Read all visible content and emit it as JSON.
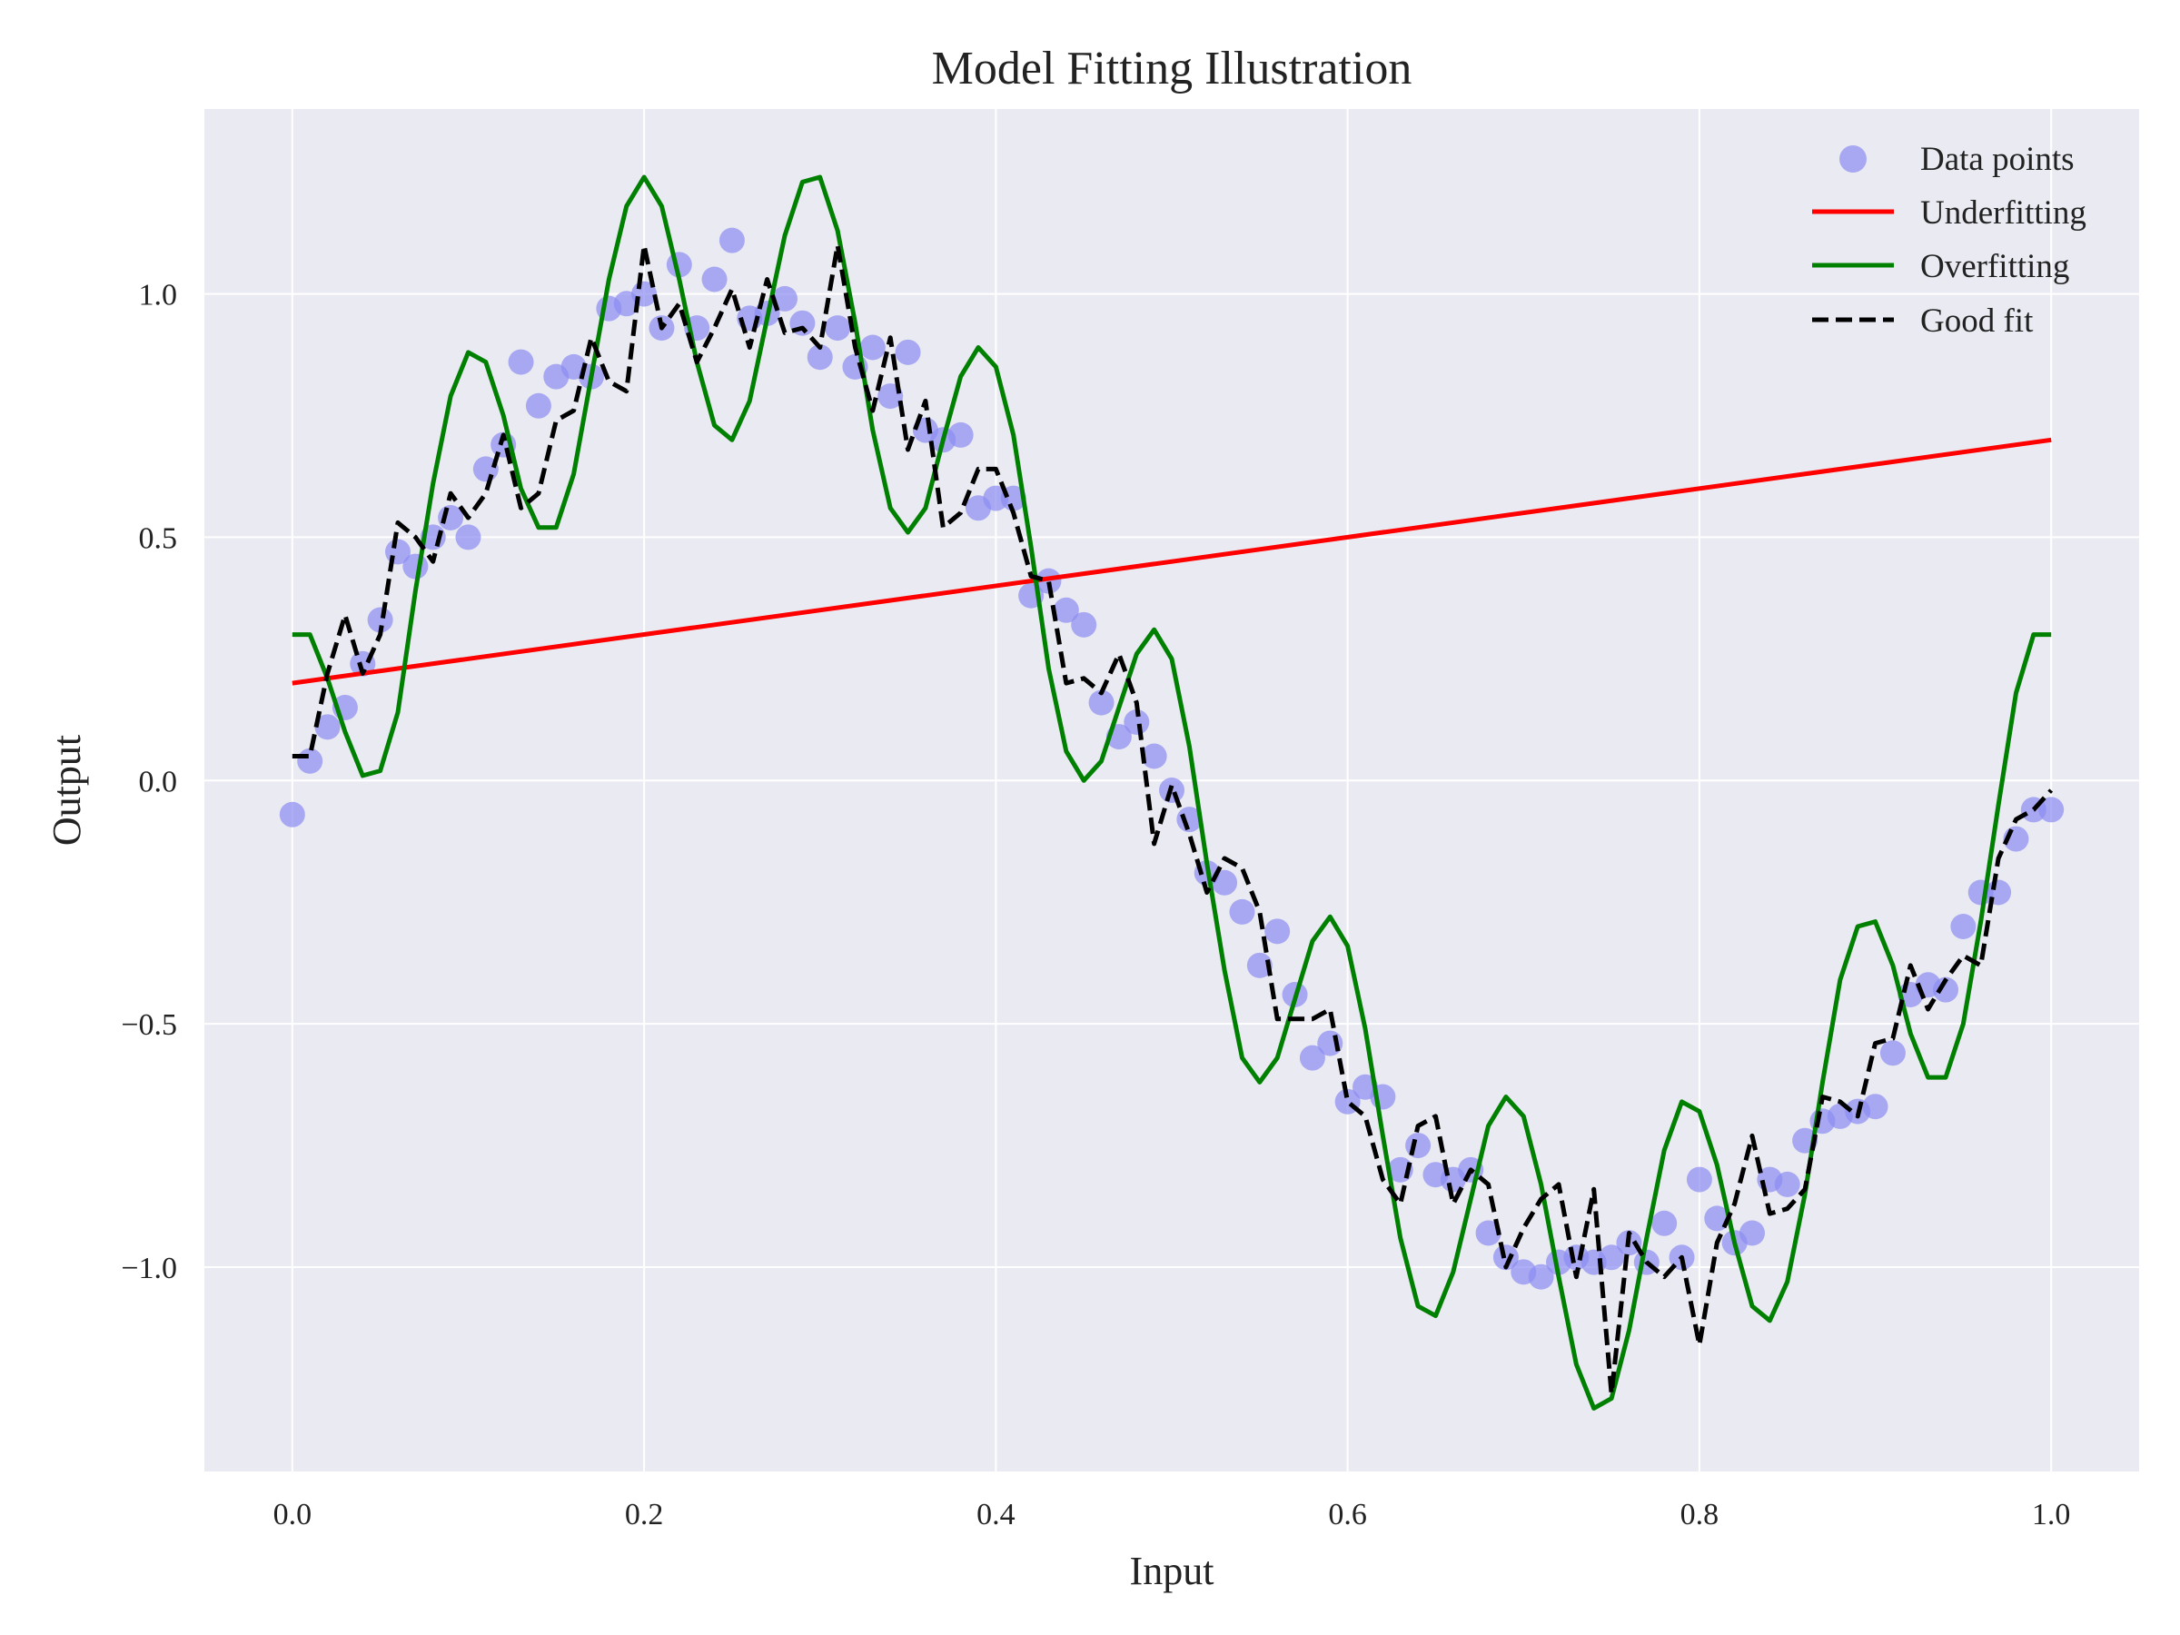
{
  "chart_data": {
    "type": "line",
    "title": "Model Fitting Illustration",
    "xlabel": "Input",
    "ylabel": "Output",
    "xlim": [
      -0.05,
      1.05
    ],
    "ylim": [
      -1.42,
      1.38
    ],
    "xticks": [
      0.0,
      0.2,
      0.4,
      0.6,
      0.8,
      1.0
    ],
    "xtick_labels": [
      "0.0",
      "0.2",
      "0.4",
      "0.6",
      "0.8",
      "1.0"
    ],
    "yticks": [
      1.0,
      0.5,
      0.0,
      -0.5,
      -1.0
    ],
    "ytick_labels": [
      "1.0",
      "0.5",
      "0.0",
      "−0.5",
      "−1.0"
    ],
    "grid": true,
    "legend_position": "top-right",
    "colors": {
      "background": "#eaeaf2",
      "grid": "#ffffff",
      "data_points": "#8c8cf2",
      "underfitting": "#ff0000",
      "overfitting": "#008000",
      "good_fit": "#000000"
    },
    "series": [
      {
        "name": "Data points",
        "kind": "scatter",
        "x": [
          0.0,
          0.01,
          0.02,
          0.03,
          0.04,
          0.05,
          0.06,
          0.07,
          0.08,
          0.09,
          0.1,
          0.11,
          0.12,
          0.13,
          0.14,
          0.15,
          0.16,
          0.17,
          0.18,
          0.19,
          0.2,
          0.21,
          0.22,
          0.23,
          0.24,
          0.25,
          0.26,
          0.27,
          0.28,
          0.29,
          0.3,
          0.31,
          0.32,
          0.33,
          0.34,
          0.35,
          0.36,
          0.37,
          0.38,
          0.39,
          0.4,
          0.41,
          0.42,
          0.43,
          0.44,
          0.45,
          0.46,
          0.47,
          0.48,
          0.49,
          0.5,
          0.51,
          0.52,
          0.53,
          0.54,
          0.55,
          0.56,
          0.57,
          0.58,
          0.59,
          0.6,
          0.61,
          0.62,
          0.63,
          0.64,
          0.65,
          0.66,
          0.67,
          0.68,
          0.69,
          0.7,
          0.71,
          0.72,
          0.73,
          0.74,
          0.75,
          0.76,
          0.77,
          0.78,
          0.79,
          0.8,
          0.81,
          0.82,
          0.83,
          0.84,
          0.85,
          0.86,
          0.87,
          0.88,
          0.89,
          0.9,
          0.91,
          0.92,
          0.93,
          0.94,
          0.95,
          0.96,
          0.97,
          0.98,
          0.99,
          1.0
        ],
        "y": [
          -0.07,
          0.04,
          0.11,
          0.15,
          0.24,
          0.33,
          0.47,
          0.44,
          0.5,
          0.54,
          0.5,
          0.64,
          0.69,
          0.86,
          0.77,
          0.83,
          0.85,
          0.83,
          0.97,
          0.98,
          1.0,
          0.93,
          1.06,
          0.93,
          1.03,
          1.11,
          0.95,
          0.96,
          0.99,
          0.94,
          0.87,
          0.93,
          0.85,
          0.89,
          0.79,
          0.88,
          0.72,
          0.7,
          0.71,
          0.56,
          0.58,
          0.58,
          0.38,
          0.41,
          0.35,
          0.32,
          0.16,
          0.09,
          0.12,
          0.05,
          -0.02,
          -0.08,
          -0.19,
          -0.21,
          -0.27,
          -0.38,
          -0.31,
          -0.44,
          -0.57,
          -0.54,
          -0.66,
          -0.63,
          -0.65,
          -0.8,
          -0.75,
          -0.81,
          -0.82,
          -0.8,
          -0.93,
          -0.98,
          -1.01,
          -1.02,
          -0.99,
          -0.98,
          -0.99,
          -0.98,
          -0.95,
          -0.99,
          -0.91,
          -0.98,
          -0.82,
          -0.9,
          -0.95,
          -0.93,
          -0.82,
          -0.83,
          -0.74,
          -0.7,
          -0.69,
          -0.68,
          -0.67,
          -0.56,
          -0.44,
          -0.42,
          -0.43,
          -0.3,
          -0.23,
          -0.23,
          -0.12,
          -0.06,
          -0.06
        ]
      },
      {
        "name": "Underfitting",
        "kind": "line",
        "x": [
          0.0,
          1.0
        ],
        "y": [
          0.2,
          0.7
        ]
      },
      {
        "name": "Overfitting",
        "kind": "line",
        "x": [
          0.0,
          0.01,
          0.02,
          0.03,
          0.04,
          0.05,
          0.06,
          0.07,
          0.08,
          0.09,
          0.1,
          0.11,
          0.12,
          0.13,
          0.14,
          0.15,
          0.16,
          0.17,
          0.18,
          0.19,
          0.2,
          0.21,
          0.22,
          0.23,
          0.24,
          0.25,
          0.26,
          0.27,
          0.28,
          0.29,
          0.3,
          0.31,
          0.32,
          0.33,
          0.34,
          0.35,
          0.36,
          0.37,
          0.38,
          0.39,
          0.4,
          0.41,
          0.42,
          0.43,
          0.44,
          0.45,
          0.46,
          0.47,
          0.48,
          0.49,
          0.5,
          0.51,
          0.52,
          0.53,
          0.54,
          0.55,
          0.56,
          0.57,
          0.58,
          0.59,
          0.6,
          0.61,
          0.62,
          0.63,
          0.64,
          0.65,
          0.66,
          0.67,
          0.68,
          0.69,
          0.7,
          0.71,
          0.72,
          0.73,
          0.74,
          0.75,
          0.76,
          0.77,
          0.78,
          0.79,
          0.8,
          0.81,
          0.82,
          0.83,
          0.84,
          0.85,
          0.86,
          0.87,
          0.88,
          0.89,
          0.9,
          0.91,
          0.92,
          0.93,
          0.94,
          0.95,
          0.96,
          0.97,
          0.98,
          0.99,
          1.0
        ],
        "y": [
          0.3,
          0.3,
          0.21,
          0.1,
          0.01,
          0.02,
          0.14,
          0.39,
          0.61,
          0.79,
          0.88,
          0.86,
          0.75,
          0.6,
          0.52,
          0.52,
          0.63,
          0.83,
          1.03,
          1.18,
          1.24,
          1.18,
          1.03,
          0.86,
          0.73,
          0.7,
          0.78,
          0.95,
          1.12,
          1.23,
          1.24,
          1.13,
          0.94,
          0.72,
          0.56,
          0.51,
          0.56,
          0.7,
          0.83,
          0.89,
          0.85,
          0.71,
          0.48,
          0.23,
          0.06,
          0.0,
          0.04,
          0.15,
          0.26,
          0.31,
          0.25,
          0.07,
          -0.17,
          -0.39,
          -0.57,
          -0.62,
          -0.57,
          -0.45,
          -0.33,
          -0.28,
          -0.34,
          -0.51,
          -0.73,
          -0.94,
          -1.08,
          -1.1,
          -1.01,
          -0.86,
          -0.71,
          -0.65,
          -0.69,
          -0.83,
          -1.02,
          -1.2,
          -1.29,
          -1.27,
          -1.13,
          -0.94,
          -0.76,
          -0.66,
          -0.68,
          -0.79,
          -0.95,
          -1.08,
          -1.11,
          -1.03,
          -0.85,
          -0.62,
          -0.41,
          -0.3,
          -0.29,
          -0.38,
          -0.52,
          -0.61,
          -0.61,
          -0.5,
          -0.29,
          -0.05,
          0.18,
          0.3,
          0.3
        ]
      },
      {
        "name": "Good fit",
        "kind": "line",
        "dashed": true,
        "x": [
          0.0,
          0.01,
          0.02,
          0.03,
          0.04,
          0.05,
          0.06,
          0.07,
          0.08,
          0.09,
          0.1,
          0.11,
          0.12,
          0.13,
          0.14,
          0.15,
          0.16,
          0.17,
          0.18,
          0.19,
          0.2,
          0.21,
          0.22,
          0.23,
          0.24,
          0.25,
          0.26,
          0.27,
          0.28,
          0.29,
          0.3,
          0.31,
          0.32,
          0.33,
          0.34,
          0.35,
          0.36,
          0.37,
          0.38,
          0.39,
          0.4,
          0.41,
          0.42,
          0.43,
          0.44,
          0.45,
          0.46,
          0.47,
          0.48,
          0.49,
          0.5,
          0.51,
          0.52,
          0.53,
          0.54,
          0.55,
          0.56,
          0.57,
          0.58,
          0.59,
          0.6,
          0.61,
          0.62,
          0.63,
          0.64,
          0.65,
          0.66,
          0.67,
          0.68,
          0.69,
          0.7,
          0.71,
          0.72,
          0.73,
          0.74,
          0.75,
          0.76,
          0.77,
          0.78,
          0.79,
          0.8,
          0.81,
          0.82,
          0.83,
          0.84,
          0.85,
          0.86,
          0.87,
          0.88,
          0.89,
          0.9,
          0.91,
          0.92,
          0.93,
          0.94,
          0.95,
          0.96,
          0.97,
          0.98,
          0.99,
          1.0
        ],
        "y": [
          0.05,
          0.05,
          0.22,
          0.34,
          0.22,
          0.3,
          0.53,
          0.5,
          0.45,
          0.59,
          0.54,
          0.59,
          0.71,
          0.56,
          0.59,
          0.74,
          0.76,
          0.91,
          0.82,
          0.8,
          1.1,
          0.93,
          0.98,
          0.86,
          0.93,
          1.01,
          0.89,
          1.03,
          0.92,
          0.93,
          0.89,
          1.1,
          0.89,
          0.76,
          0.91,
          0.68,
          0.78,
          0.52,
          0.55,
          0.64,
          0.64,
          0.55,
          0.42,
          0.41,
          0.2,
          0.21,
          0.18,
          0.26,
          0.16,
          -0.13,
          -0.01,
          -0.11,
          -0.23,
          -0.16,
          -0.18,
          -0.27,
          -0.49,
          -0.49,
          -0.49,
          -0.47,
          -0.66,
          -0.69,
          -0.82,
          -0.87,
          -0.71,
          -0.69,
          -0.87,
          -0.8,
          -0.83,
          -1.0,
          -0.92,
          -0.86,
          -0.83,
          -1.02,
          -0.84,
          -1.26,
          -0.93,
          -0.99,
          -1.02,
          -0.98,
          -1.16,
          -0.95,
          -0.87,
          -0.73,
          -0.89,
          -0.88,
          -0.84,
          -0.65,
          -0.66,
          -0.69,
          -0.54,
          -0.53,
          -0.38,
          -0.47,
          -0.41,
          -0.36,
          -0.38,
          -0.16,
          -0.08,
          -0.06,
          -0.02
        ]
      }
    ]
  }
}
